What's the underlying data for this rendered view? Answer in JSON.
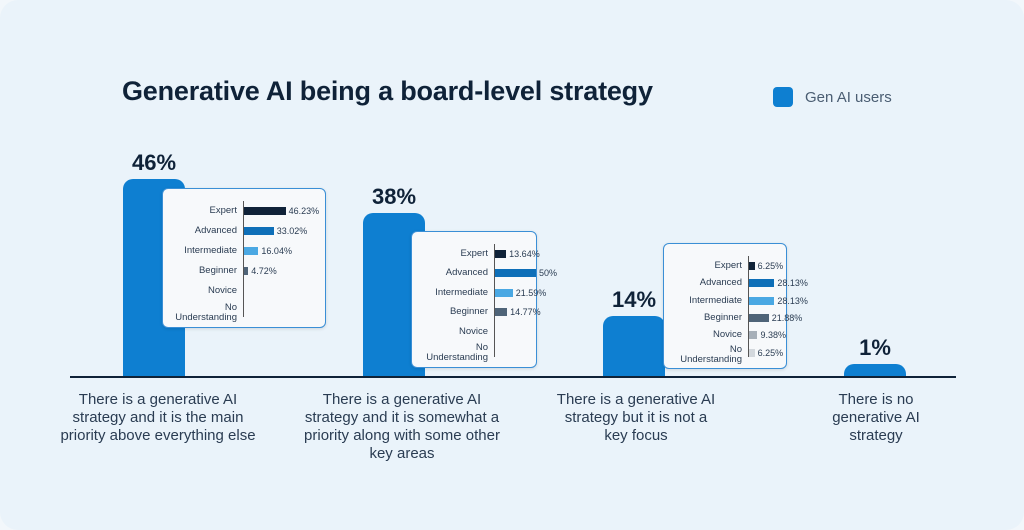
{
  "title": "Generative AI being a board-level strategy",
  "legend": {
    "label": "Gen AI users",
    "color": "#0e7fd1"
  },
  "chart_data": {
    "type": "bar",
    "title": "Generative AI being a board-level strategy",
    "categories": [
      "There is a generative AI strategy and it is the main priority above everything else",
      "There is a generative AI strategy and it is somewhat a priority along with some other key areas",
      "There is a generative AI strategy but it is not a key focus",
      "There is no generative AI strategy"
    ],
    "series": [
      {
        "name": "Gen AI users",
        "values": [
          46,
          38,
          14,
          1
        ],
        "labels": [
          "46%",
          "38%",
          "14%",
          "1%"
        ]
      }
    ],
    "ylim": [
      0,
      50
    ],
    "grid": false,
    "legend_position": "top-right",
    "insets": [
      {
        "type": "horizontal-bar",
        "levels": [
          "Expert",
          "Advanced",
          "Intermediate",
          "Beginner",
          "Novice",
          "No\nUnderstanding"
        ],
        "values": [
          46.23,
          33.02,
          16.04,
          4.72,
          0,
          0
        ],
        "labels": [
          "46.23%",
          "33.02%",
          "16.04%",
          "4.72%",
          "",
          ""
        ]
      },
      {
        "type": "horizontal-bar",
        "levels": [
          "Expert",
          "Advanced",
          "Intermediate",
          "Beginner",
          "Novice",
          "No\nUnderstanding"
        ],
        "values": [
          13.64,
          50,
          21.59,
          14.77,
          0,
          0
        ],
        "labels": [
          "13.64%",
          "50%",
          "21.59%",
          "14.77%",
          "",
          ""
        ]
      },
      {
        "type": "horizontal-bar",
        "levels": [
          "Expert",
          "Advanced",
          "Intermediate",
          "Beginner",
          "Novice",
          "No\nUnderstanding"
        ],
        "values": [
          6.25,
          28.13,
          28.13,
          21.88,
          9.38,
          6.25
        ],
        "labels": [
          "6.25%",
          "28.13%",
          "28.13%",
          "21.88%",
          "9.38%",
          "6.25%"
        ]
      }
    ],
    "level_colors": [
      "#0f2238",
      "#0e6fb8",
      "#4aa8e3",
      "#4f6478",
      "#a7b0b9",
      "#d3d8dd"
    ]
  }
}
